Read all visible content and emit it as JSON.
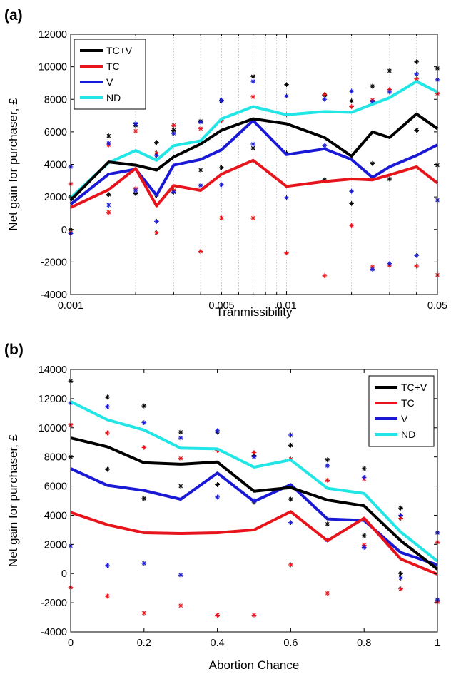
{
  "chart_data": [
    {
      "panel_label": "(a)",
      "type": "line",
      "xscale": "log",
      "xlabel": "Tranmissibility",
      "ylabel": "Net gain for purchaser, £",
      "xlim": [
        0.001,
        0.05
      ],
      "ylim": [
        -4000,
        12000
      ],
      "xticks": [
        0.001,
        0.005,
        0.01,
        0.05
      ],
      "xtick_labels": [
        "0.001",
        "0.005",
        "0.01",
        "0.05"
      ],
      "yticks": [
        -4000,
        -2000,
        0,
        2000,
        4000,
        6000,
        8000,
        10000,
        12000
      ],
      "grid": "vertical dotted",
      "legend_position": "top-left",
      "x": [
        0.001,
        0.0015,
        0.002,
        0.0025,
        0.003,
        0.004,
        0.005,
        0.007,
        0.01,
        0.015,
        0.02,
        0.025,
        0.03,
        0.04,
        0.05
      ],
      "series": [
        {
          "name": "TC+V",
          "color": "#000000",
          "values": [
            1800,
            4150,
            3950,
            3650,
            4450,
            5250,
            6100,
            6800,
            6500,
            5650,
            4500,
            6000,
            5650,
            7100,
            6200
          ],
          "markers": [
            [
              0.001,
              2000
            ],
            [
              0.001,
              0
            ],
            [
              0.0015,
              5750
            ],
            [
              0.0015,
              2150
            ],
            [
              0.002,
              6400
            ],
            [
              0.002,
              2200
            ],
            [
              0.0025,
              5350
            ],
            [
              0.0025,
              2100
            ],
            [
              0.003,
              6100
            ],
            [
              0.003,
              2300
            ],
            [
              0.004,
              6650
            ],
            [
              0.004,
              3650
            ],
            [
              0.005,
              7900
            ],
            [
              0.005,
              3800
            ],
            [
              0.007,
              9400
            ],
            [
              0.007,
              5000
            ],
            [
              0.01,
              8900
            ],
            [
              0.01,
              4700
            ],
            [
              0.015,
              8250
            ],
            [
              0.015,
              3050
            ],
            [
              0.02,
              7900
            ],
            [
              0.02,
              1600
            ],
            [
              0.025,
              8800
            ],
            [
              0.025,
              4050
            ],
            [
              0.03,
              9750
            ],
            [
              0.03,
              3100
            ],
            [
              0.04,
              10300
            ],
            [
              0.04,
              6100
            ],
            [
              0.05,
              9900
            ],
            [
              0.05,
              3950
            ]
          ]
        },
        {
          "name": "TC",
          "color": "#e8141c",
          "values": [
            1350,
            2450,
            3750,
            1450,
            2700,
            2400,
            3400,
            4250,
            2650,
            2950,
            3100,
            3050,
            3350,
            3850,
            2850
          ],
          "markers": [
            [
              0.001,
              2800
            ],
            [
              0.001,
              -200
            ],
            [
              0.0015,
              5200
            ],
            [
              0.0015,
              1050
            ],
            [
              0.002,
              6050
            ],
            [
              0.002,
              2500
            ],
            [
              0.0025,
              4700
            ],
            [
              0.0025,
              -200
            ],
            [
              0.003,
              6400
            ],
            [
              0.003,
              2400
            ],
            [
              0.004,
              6200
            ],
            [
              0.004,
              -1350
            ],
            [
              0.005,
              6700
            ],
            [
              0.005,
              700
            ],
            [
              0.007,
              8150
            ],
            [
              0.007,
              700
            ],
            [
              0.01,
              7050
            ],
            [
              0.01,
              -1450
            ],
            [
              0.015,
              8300
            ],
            [
              0.015,
              -2850
            ],
            [
              0.02,
              7550
            ],
            [
              0.02,
              250
            ],
            [
              0.025,
              7950
            ],
            [
              0.025,
              -2300
            ],
            [
              0.03,
              8600
            ],
            [
              0.03,
              -2200
            ],
            [
              0.04,
              9250
            ],
            [
              0.04,
              -2250
            ],
            [
              0.05,
              8350
            ],
            [
              0.05,
              -2800
            ]
          ]
        },
        {
          "name": "V",
          "color": "#1a1ad6",
          "values": [
            1550,
            3400,
            3700,
            2100,
            3950,
            4300,
            4900,
            6700,
            4600,
            4950,
            4300,
            3200,
            3850,
            4550,
            5200
          ],
          "markers": [
            [
              0.001,
              3850
            ],
            [
              0.001,
              -250
            ],
            [
              0.0015,
              5300
            ],
            [
              0.0015,
              1500
            ],
            [
              0.002,
              6500
            ],
            [
              0.002,
              2400
            ],
            [
              0.0025,
              4550
            ],
            [
              0.0025,
              500
            ],
            [
              0.003,
              5900
            ],
            [
              0.003,
              2300
            ],
            [
              0.004,
              6600
            ],
            [
              0.004,
              2700
            ],
            [
              0.005,
              7950
            ],
            [
              0.005,
              2750
            ],
            [
              0.007,
              9100
            ],
            [
              0.007,
              5250
            ],
            [
              0.01,
              8200
            ],
            [
              0.01,
              1950
            ],
            [
              0.015,
              8000
            ],
            [
              0.015,
              5150
            ],
            [
              0.02,
              8500
            ],
            [
              0.02,
              2350
            ],
            [
              0.025,
              7850
            ],
            [
              0.025,
              -2450
            ],
            [
              0.03,
              8450
            ],
            [
              0.03,
              -2100
            ],
            [
              0.04,
              9550
            ],
            [
              0.04,
              -1600
            ],
            [
              0.05,
              9200
            ],
            [
              0.05,
              1800
            ]
          ]
        },
        {
          "name": "ND",
          "color": "#22e6e6",
          "values": [
            1950,
            4100,
            4850,
            4250,
            5150,
            5450,
            6800,
            7550,
            7050,
            7250,
            7200,
            7700,
            8100,
            9100,
            8450
          ],
          "markers": []
        }
      ]
    },
    {
      "panel_label": "(b)",
      "type": "line",
      "xscale": "linear",
      "xlabel": "Abortion Chance",
      "ylabel": "Net gain for purchaser, £",
      "xlim": [
        0,
        1
      ],
      "ylim": [
        -4000,
        14000
      ],
      "xticks": [
        0,
        0.2,
        0.4,
        0.6,
        0.8,
        1
      ],
      "xtick_labels": [
        "0",
        "0.2",
        "0.4",
        "0.6",
        "0.8",
        "1"
      ],
      "yticks": [
        -4000,
        -2000,
        0,
        2000,
        4000,
        6000,
        8000,
        10000,
        12000,
        14000
      ],
      "grid": "none",
      "legend_position": "top-right",
      "x": [
        0,
        0.1,
        0.2,
        0.3,
        0.4,
        0.5,
        0.6,
        0.7,
        0.8,
        0.9,
        1
      ],
      "series": [
        {
          "name": "TC+V",
          "color": "#000000",
          "values": [
            9300,
            8700,
            7600,
            7500,
            7650,
            5650,
            5900,
            5050,
            4650,
            2250,
            300
          ],
          "markers": [
            [
              0,
              13200
            ],
            [
              0,
              8000
            ],
            [
              0.1,
              12100
            ],
            [
              0.1,
              7150
            ],
            [
              0.2,
              11500
            ],
            [
              0.2,
              5150
            ],
            [
              0.3,
              9700
            ],
            [
              0.3,
              6000
            ],
            [
              0.4,
              9700
            ],
            [
              0.4,
              6100
            ],
            [
              0.5,
              8100
            ],
            [
              0.5,
              4900
            ],
            [
              0.6,
              8800
            ],
            [
              0.6,
              5100
            ],
            [
              0.7,
              7800
            ],
            [
              0.7,
              3400
            ],
            [
              0.8,
              7200
            ],
            [
              0.8,
              2600
            ],
            [
              0.9,
              4500
            ],
            [
              0.9,
              0
            ],
            [
              1,
              2800
            ],
            [
              1,
              -1800
            ]
          ]
        },
        {
          "name": "TC",
          "color": "#e8141c",
          "values": [
            4200,
            3350,
            2800,
            2750,
            2800,
            3000,
            4250,
            2250,
            3800,
            1000,
            -50
          ],
          "markers": [
            [
              0,
              10200
            ],
            [
              0,
              -950
            ],
            [
              0.1,
              9650
            ],
            [
              0.1,
              -1550
            ],
            [
              0.2,
              8650
            ],
            [
              0.2,
              -2700
            ],
            [
              0.3,
              7900
            ],
            [
              0.3,
              -2200
            ],
            [
              0.4,
              8450
            ],
            [
              0.4,
              -2850
            ],
            [
              0.5,
              8300
            ],
            [
              0.5,
              -2850
            ],
            [
              0.6,
              7850
            ],
            [
              0.6,
              600
            ],
            [
              0.7,
              6400
            ],
            [
              0.7,
              -1350
            ],
            [
              0.8,
              6500
            ],
            [
              0.8,
              1950
            ],
            [
              0.9,
              3800
            ],
            [
              0.9,
              -1050
            ],
            [
              1,
              2150
            ],
            [
              1,
              -1950
            ]
          ]
        },
        {
          "name": "V",
          "color": "#1a1ad6",
          "values": [
            7200,
            6050,
            5700,
            5100,
            6900,
            4950,
            6100,
            3750,
            3650,
            1450,
            600
          ],
          "markers": [
            [
              0,
              11700
            ],
            [
              0,
              1900
            ],
            [
              0.1,
              11450
            ],
            [
              0.1,
              550
            ],
            [
              0.2,
              10350
            ],
            [
              0.2,
              700
            ],
            [
              0.3,
              9300
            ],
            [
              0.3,
              -100
            ],
            [
              0.4,
              9800
            ],
            [
              0.4,
              5250
            ],
            [
              0.5,
              8000
            ],
            [
              0.5,
              5000
            ],
            [
              0.6,
              9500
            ],
            [
              0.6,
              3500
            ],
            [
              0.7,
              7400
            ],
            [
              0.7,
              2300
            ],
            [
              0.8,
              6600
            ],
            [
              0.8,
              1800
            ],
            [
              0.9,
              4000
            ],
            [
              0.9,
              -300
            ],
            [
              1,
              2800
            ],
            [
              1,
              -1800
            ]
          ]
        },
        {
          "name": "ND",
          "color": "#22e6e6",
          "values": [
            11800,
            10550,
            9850,
            8600,
            8550,
            7300,
            7800,
            5850,
            5500,
            2850,
            850
          ],
          "markers": []
        }
      ]
    }
  ]
}
